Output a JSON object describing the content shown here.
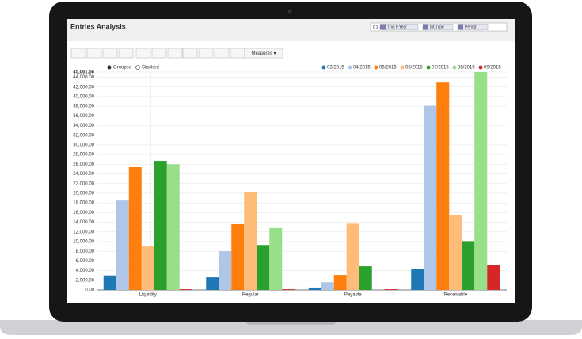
{
  "ui": {
    "title": "Entries Analysis",
    "facets": [
      "This F.Year",
      "Int.Type",
      "Period"
    ],
    "measures_button": "Measures ▾",
    "modes": [
      "Grouped",
      "Stacked"
    ]
  },
  "chart_data": {
    "type": "bar",
    "categories": [
      "Liquidity",
      "Regular",
      "Payable",
      "Receivable"
    ],
    "series": [
      {
        "name": "03/2015",
        "color": "#1f77b4",
        "values": [
          3000,
          2600,
          500,
          4400
        ]
      },
      {
        "name": "04/2015",
        "color": "#aec7e8",
        "values": [
          18500,
          8000,
          1600,
          38100
        ]
      },
      {
        "name": "05/2015",
        "color": "#ff7f0e",
        "values": [
          25400,
          13600,
          3100,
          42900
        ]
      },
      {
        "name": "06/2015",
        "color": "#ffbb78",
        "values": [
          9000,
          20300,
          13700,
          15400
        ]
      },
      {
        "name": "07/2015",
        "color": "#2ca02c",
        "values": [
          26700,
          9300,
          4900,
          10100
        ]
      },
      {
        "name": "08/2015",
        "color": "#98df8a",
        "values": [
          26000,
          12800,
          null,
          45061.56
        ]
      },
      {
        "name": "09/2015",
        "color": "#d62728",
        "values": [
          150,
          150,
          150,
          5100
        ]
      }
    ],
    "ylim": [
      0,
      45061.56
    ],
    "yticks": [
      {
        "value": 0,
        "label": "0.00"
      },
      {
        "value": 2000,
        "label": "2,000.00"
      },
      {
        "value": 4000,
        "label": "4,000.00"
      },
      {
        "value": 6000,
        "label": "6,000.00"
      },
      {
        "value": 8000,
        "label": "8,000.00"
      },
      {
        "value": 10000,
        "label": "10,000.00"
      },
      {
        "value": 12000,
        "label": "12,000.00"
      },
      {
        "value": 14000,
        "label": "14,000.00"
      },
      {
        "value": 16000,
        "label": "16,000.00"
      },
      {
        "value": 18000,
        "label": "18,000.00"
      },
      {
        "value": 20000,
        "label": "20,000.00"
      },
      {
        "value": 22000,
        "label": "22,000.00"
      },
      {
        "value": 24000,
        "label": "24,000.00"
      },
      {
        "value": 26000,
        "label": "26,000.00"
      },
      {
        "value": 28000,
        "label": "28,000.00"
      },
      {
        "value": 30000,
        "label": "30,000.00"
      },
      {
        "value": 32000,
        "label": "32,000.00"
      },
      {
        "value": 34000,
        "label": "34,000.00"
      },
      {
        "value": 36000,
        "label": "36,000.00"
      },
      {
        "value": 38000,
        "label": "38,000.00"
      },
      {
        "value": 40000,
        "label": "40,000.00"
      },
      {
        "value": 42000,
        "label": "42,000.00"
      },
      {
        "value": 44000,
        "label": "44,000.00"
      },
      {
        "value": 45061.56,
        "label": "45,061.56"
      }
    ],
    "grid": true
  }
}
